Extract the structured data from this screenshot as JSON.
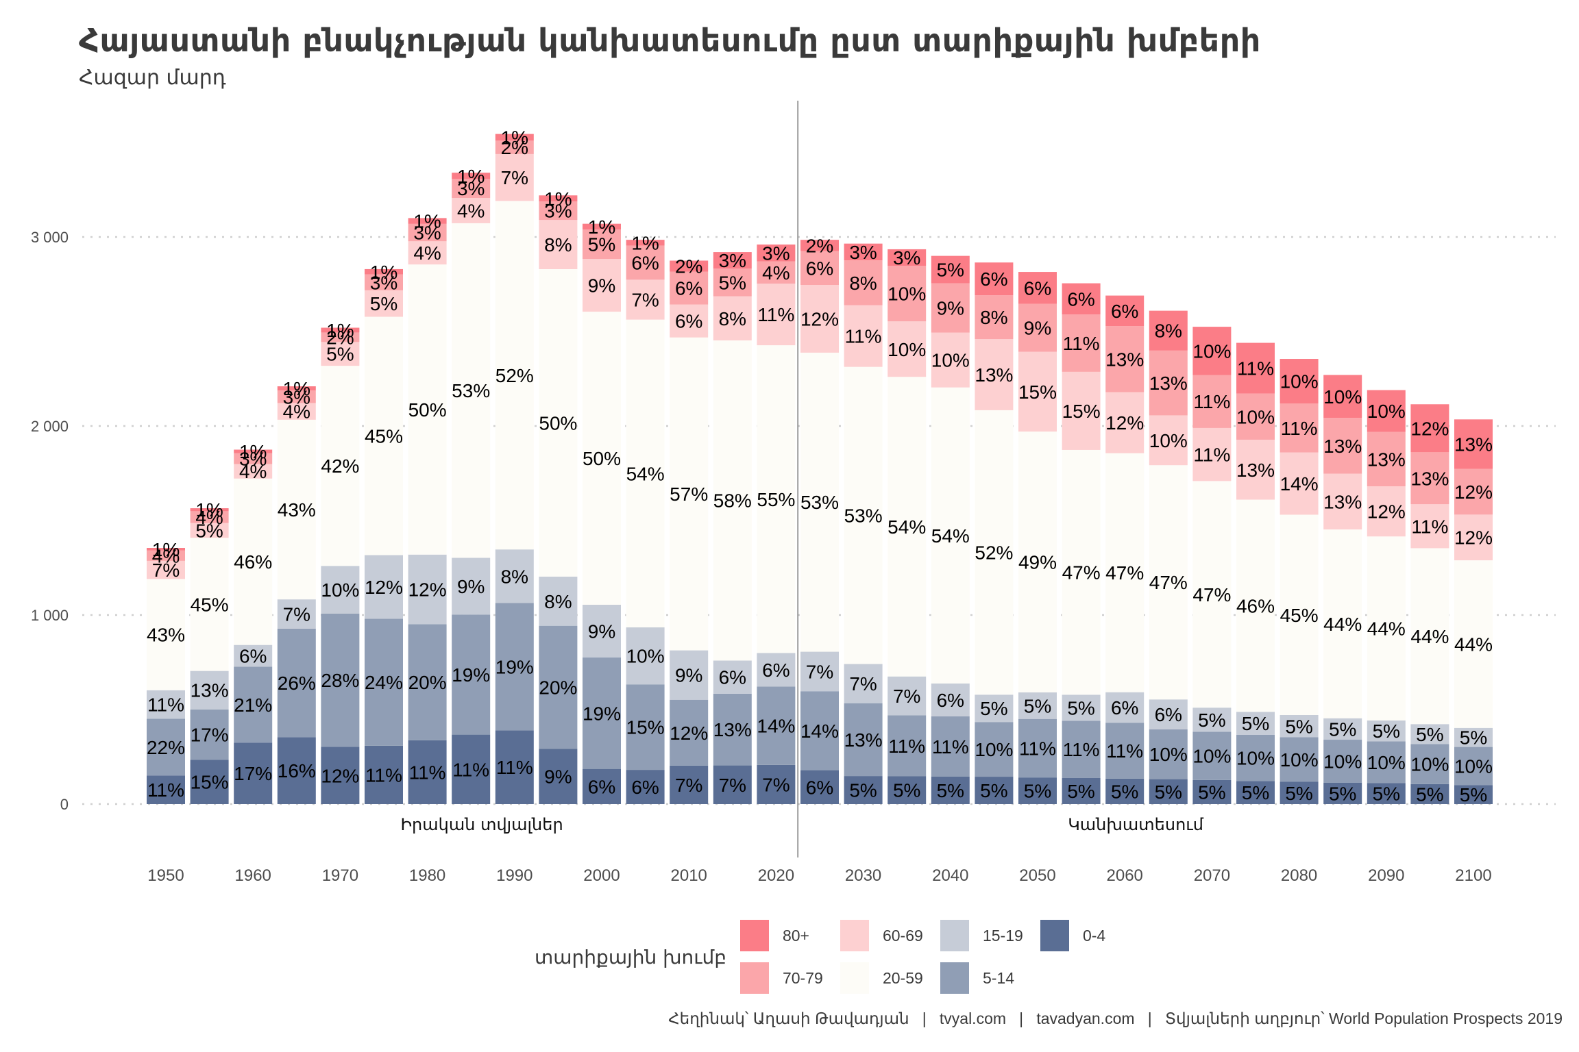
{
  "chart_data": {
    "type": "bar",
    "stacked": true,
    "title": "Հայաստանի բնակչության կանխատեսումը ըստ տարիքային խմբերի",
    "subtitle": "Հազար մարդ",
    "xlabel": "",
    "ylabel": "",
    "ylim": [
      0,
      3600
    ],
    "yticks": [
      0,
      1000,
      2000,
      3000
    ],
    "ytick_labels": [
      "0",
      "1 000",
      "2 000",
      "3 000"
    ],
    "xticks": [
      1950,
      1960,
      1970,
      1980,
      1990,
      2000,
      2010,
      2020,
      2030,
      2040,
      2050,
      2060,
      2070,
      2080,
      2090,
      2100
    ],
    "grid": "horizontal-dotted",
    "divider_year": 2022.5,
    "period_labels": [
      "Իրական տվյալներ",
      "Կանխատեսում"
    ],
    "legend": {
      "title": "տարիքային խումբ",
      "position": "bottom"
    },
    "groups": [
      "0-4",
      "5-14",
      "15-19",
      "20-59",
      "60-69",
      "70-79",
      "80+"
    ],
    "colors": {
      "0-4": "#5a6e94",
      "5-14": "#909eb5",
      "15-19": "#c6ccd7",
      "20-59": "#fdfcf7",
      "60-69": "#fdd0d1",
      "70-79": "#fba6aa",
      "80+": "#fb7d87"
    },
    "years": [
      1950,
      1955,
      1960,
      1965,
      1970,
      1975,
      1980,
      1985,
      1990,
      1995,
      2000,
      2005,
      2010,
      2015,
      2020,
      2025,
      2030,
      2035,
      2040,
      2045,
      2050,
      2055,
      2060,
      2065,
      2070,
      2075,
      2080,
      2085,
      2090,
      2095,
      2100
    ],
    "totals": [
      1355,
      1565,
      1875,
      2210,
      2520,
      2830,
      3100,
      3340,
      3545,
      3220,
      3070,
      2985,
      2875,
      2920,
      2960,
      2985,
      2965,
      2935,
      2900,
      2865,
      2815,
      2755,
      2690,
      2610,
      2525,
      2440,
      2355,
      2270,
      2190,
      2115,
      2035
    ],
    "shares_pct": {
      "0-4": [
        11,
        15,
        17,
        16,
        12,
        11,
        11,
        11,
        11,
        9,
        6,
        6,
        7,
        7,
        7,
        6,
        5,
        5,
        5,
        5,
        5,
        5,
        5,
        5,
        5,
        5,
        5,
        5,
        5,
        5,
        5
      ],
      "5-14": [
        22,
        17,
        21,
        26,
        28,
        24,
        20,
        19,
        19,
        20,
        19,
        15,
        12,
        13,
        14,
        14,
        13,
        11,
        11,
        10,
        11,
        11,
        11,
        10,
        10,
        10,
        10,
        10,
        10,
        10,
        10
      ],
      "15-19": [
        11,
        13,
        6,
        7,
        10,
        12,
        12,
        9,
        8,
        8,
        9,
        10,
        9,
        6,
        6,
        7,
        7,
        7,
        6,
        5,
        5,
        5,
        6,
        6,
        5,
        5,
        5,
        5,
        5,
        5,
        5
      ],
      "20-59": [
        43,
        45,
        46,
        43,
        42,
        45,
        50,
        53,
        52,
        50,
        50,
        54,
        57,
        58,
        55,
        53,
        53,
        54,
        54,
        52,
        49,
        47,
        47,
        47,
        47,
        46,
        45,
        44,
        44,
        44,
        44
      ],
      "60-69": [
        7,
        5,
        4,
        4,
        5,
        5,
        4,
        4,
        7,
        8,
        9,
        7,
        6,
        8,
        11,
        12,
        11,
        10,
        10,
        13,
        15,
        15,
        12,
        10,
        11,
        13,
        14,
        13,
        12,
        11,
        12
      ],
      "70-79": [
        4,
        4,
        3,
        3,
        2,
        3,
        3,
        3,
        2,
        3,
        5,
        6,
        6,
        5,
        4,
        6,
        8,
        10,
        9,
        8,
        9,
        11,
        13,
        13,
        11,
        10,
        11,
        13,
        13,
        13,
        12
      ],
      "80+": [
        1,
        1,
        1,
        1,
        1,
        1,
        1,
        1,
        1,
        1,
        1,
        1,
        2,
        3,
        3,
        2,
        3,
        3,
        5,
        6,
        6,
        6,
        6,
        8,
        10,
        11,
        10,
        10,
        10,
        12,
        13
      ]
    }
  },
  "caption": "Հեղինակ՝ Աղասի Թավադյան   |   tvyal.com   |   tavadyan.com   |   Տվյալների աղբյուր՝ World Population Prospects 2019"
}
